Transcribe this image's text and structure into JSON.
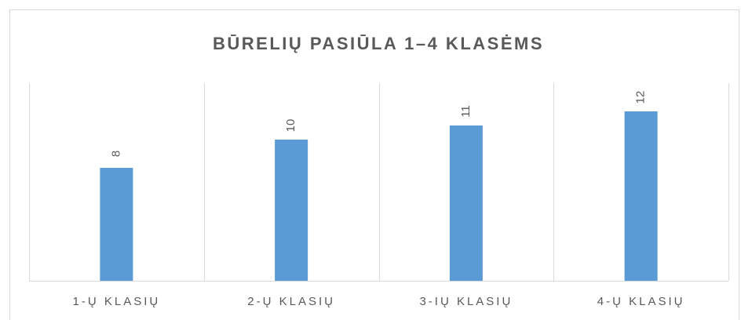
{
  "chart_data": {
    "type": "bar",
    "title": "BŪRELIŲ PASIŪLA 1–4 KLASĖMS",
    "categories": [
      "1-Ų KLASIŲ",
      "2-Ų KLASIŲ",
      "3-IŲ KLASIŲ",
      "4-Ų KLASIŲ"
    ],
    "values": [
      8,
      10,
      11,
      12
    ],
    "color": "#5b9bd5",
    "ylim": [
      0,
      14
    ],
    "grid": true
  }
}
